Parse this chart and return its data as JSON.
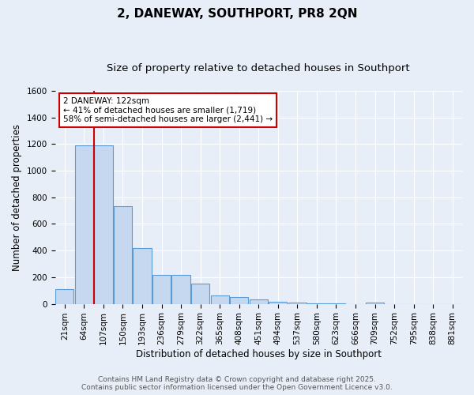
{
  "title": "2, DANEWAY, SOUTHPORT, PR8 2QN",
  "subtitle": "Size of property relative to detached houses in Southport",
  "xlabel": "Distribution of detached houses by size in Southport",
  "ylabel": "Number of detached properties",
  "categories": [
    "21sqm",
    "64sqm",
    "107sqm",
    "150sqm",
    "193sqm",
    "236sqm",
    "279sqm",
    "322sqm",
    "365sqm",
    "408sqm",
    "451sqm",
    "494sqm",
    "537sqm",
    "580sqm",
    "623sqm",
    "666sqm",
    "709sqm",
    "752sqm",
    "795sqm",
    "838sqm",
    "881sqm"
  ],
  "values": [
    110,
    1190,
    1190,
    735,
    420,
    220,
    215,
    150,
    65,
    50,
    35,
    15,
    8,
    5,
    3,
    0,
    12,
    0,
    0,
    0,
    0
  ],
  "bar_color": "#c5d8ef",
  "bar_edge_color": "#5b9bd5",
  "red_line_x": 1.5,
  "annotation_text": "2 DANEWAY: 122sqm\n← 41% of detached houses are smaller (1,719)\n58% of semi-detached houses are larger (2,441) →",
  "annotation_box_color": "white",
  "annotation_box_edge_color": "#cc0000",
  "red_line_color": "#cc0000",
  "ylim": [
    0,
    1600
  ],
  "yticks": [
    0,
    200,
    400,
    600,
    800,
    1000,
    1200,
    1400,
    1600
  ],
  "background_color": "#e8eef8",
  "grid_color": "white",
  "footer_line1": "Contains HM Land Registry data © Crown copyright and database right 2025.",
  "footer_line2": "Contains public sector information licensed under the Open Government Licence v3.0.",
  "title_fontsize": 11,
  "subtitle_fontsize": 9.5,
  "axis_label_fontsize": 8.5,
  "tick_fontsize": 7.5,
  "footer_fontsize": 6.5,
  "annotation_fontsize": 7.5
}
